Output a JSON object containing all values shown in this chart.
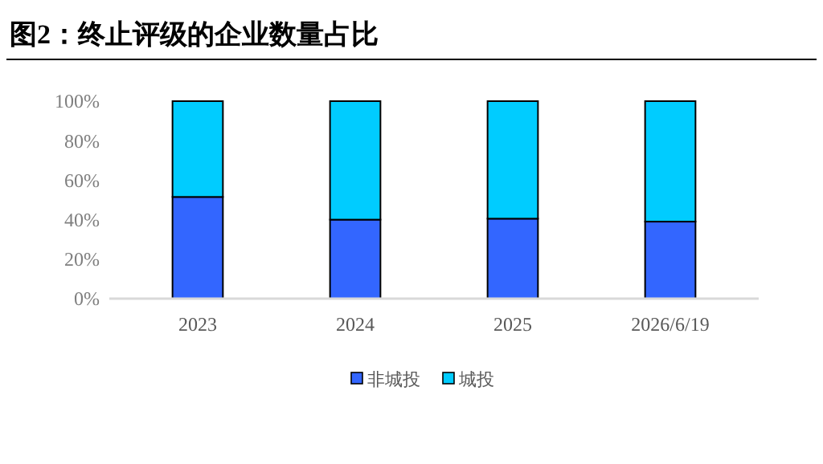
{
  "chart_data": {
    "type": "bar",
    "title": "图2：终止评级的企业数量占比",
    "categories": [
      "2023",
      "2024",
      "2025",
      "2026/6/19"
    ],
    "stacked": true,
    "series": [
      {
        "name": "非城投",
        "color": "#3366ff",
        "values": [
          51.5,
          40,
          40.5,
          39
        ]
      },
      {
        "name": "城投",
        "color": "#00ccff",
        "values": [
          48.5,
          60,
          59.5,
          61
        ]
      }
    ],
    "ylim": [
      0,
      100
    ],
    "yticks": [
      {
        "value": 0,
        "label": "0%"
      },
      {
        "value": 20,
        "label": "20%"
      },
      {
        "value": 40,
        "label": "40%"
      },
      {
        "value": 60,
        "label": "60%"
      },
      {
        "value": 80,
        "label": "80%"
      },
      {
        "value": 100,
        "label": "100%"
      }
    ],
    "grid": false,
    "legend": "bottom"
  }
}
